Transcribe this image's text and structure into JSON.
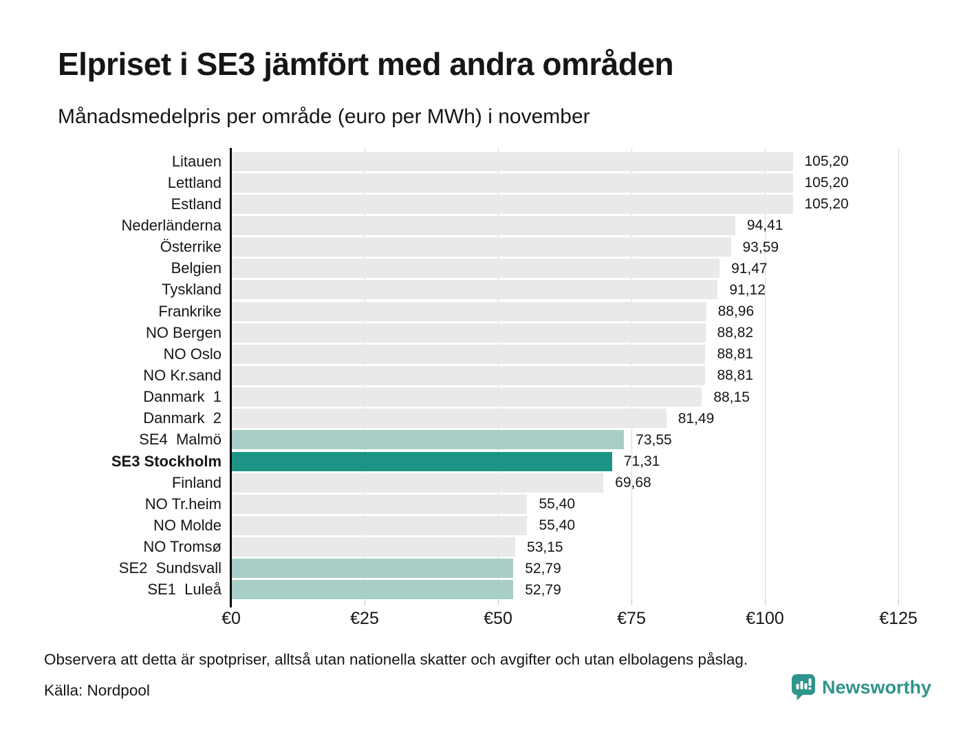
{
  "page": {
    "footnote": "Observera att detta är spotpriser, alltså utan nationella skatter och avgifter och utan elbolagens påslag.",
    "source": "Källa: Nordpool",
    "brand": "Newsworthy"
  },
  "chart_data": {
    "type": "bar",
    "orientation": "horizontal",
    "title": "Elpriset i SE3 jämfört med andra områden",
    "subtitle": "Månadsmedelpris per område (euro per MWh) i november",
    "unit": "euro per MWh",
    "month": "november",
    "categories": [
      "Litauen",
      "Lettland",
      "Estland",
      "Nederländerna",
      "Österrike",
      "Belgien",
      "Tyskland",
      "Frankrike",
      "NO Bergen",
      "NO Oslo",
      "NO Kr.sand",
      "Danmark  1",
      "Danmark  2",
      "SE4  Malmö",
      "SE3 Stockholm",
      "Finland",
      "NO Tr.heim",
      "NO Molde",
      "NO Tromsø",
      "SE2  Sundsvall",
      "SE1  Luleå"
    ],
    "values": [
      105.2,
      105.2,
      105.2,
      94.41,
      93.59,
      91.47,
      91.12,
      88.96,
      88.82,
      88.81,
      88.81,
      88.15,
      81.49,
      73.55,
      71.31,
      69.68,
      55.4,
      55.4,
      53.15,
      52.79,
      52.79
    ],
    "value_labels": [
      "105,20",
      "105,20",
      "105,20",
      "94,41",
      "93,59",
      "91,47",
      "91,12",
      "88,96",
      "88,82",
      "88,81",
      "88,81",
      "88,15",
      "81,49",
      "73,55",
      "71,31",
      "69,68",
      "55,40",
      "55,40",
      "53,15",
      "52,79",
      "52,79"
    ],
    "bar_styles": [
      "default",
      "default",
      "default",
      "default",
      "default",
      "default",
      "default",
      "default",
      "default",
      "default",
      "default",
      "default",
      "default",
      "sweden",
      "highlight",
      "default",
      "default",
      "default",
      "default",
      "sweden",
      "sweden"
    ],
    "highlight_category": "SE3 Stockholm",
    "xlim": [
      0,
      125
    ],
    "x_ticks": [
      {
        "label": "€0",
        "value": 0
      },
      {
        "label": "€25",
        "value": 25
      },
      {
        "label": "€50",
        "value": 50
      },
      {
        "label": "€75",
        "value": 75
      },
      {
        "label": "€100",
        "value": 100
      },
      {
        "label": "€125",
        "value": 125
      }
    ],
    "grid": true,
    "legend": "none",
    "colors": {
      "default": "#e9e9e9",
      "sweden": "#a8cfc7",
      "highlight": "#1b9486",
      "gridline": "#d8d8d8",
      "text": "#161616",
      "brand": "#2f948b"
    }
  }
}
